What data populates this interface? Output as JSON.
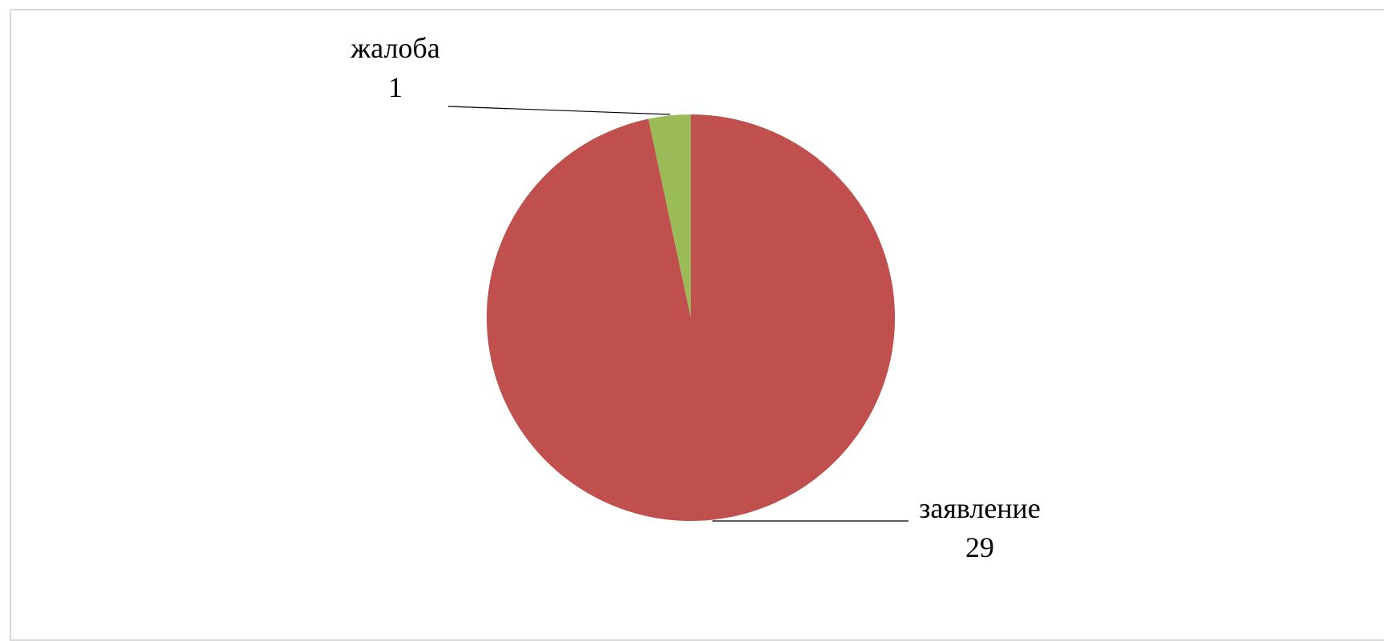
{
  "chart_data": {
    "type": "pie",
    "slices": [
      {
        "label": "заявление",
        "value": 29,
        "color": "#C0504D"
      },
      {
        "label": "жалоба",
        "value": 1,
        "color": "#9BBB59"
      }
    ],
    "start_angle_deg": 0,
    "direction": "clockwise-from-top-reverse",
    "data_labels": {
      "zayavlenie": {
        "name": "заявление",
        "value": "29"
      },
      "zhaloba": {
        "name": "жалоба",
        "value": "1"
      }
    },
    "legend": "none"
  }
}
